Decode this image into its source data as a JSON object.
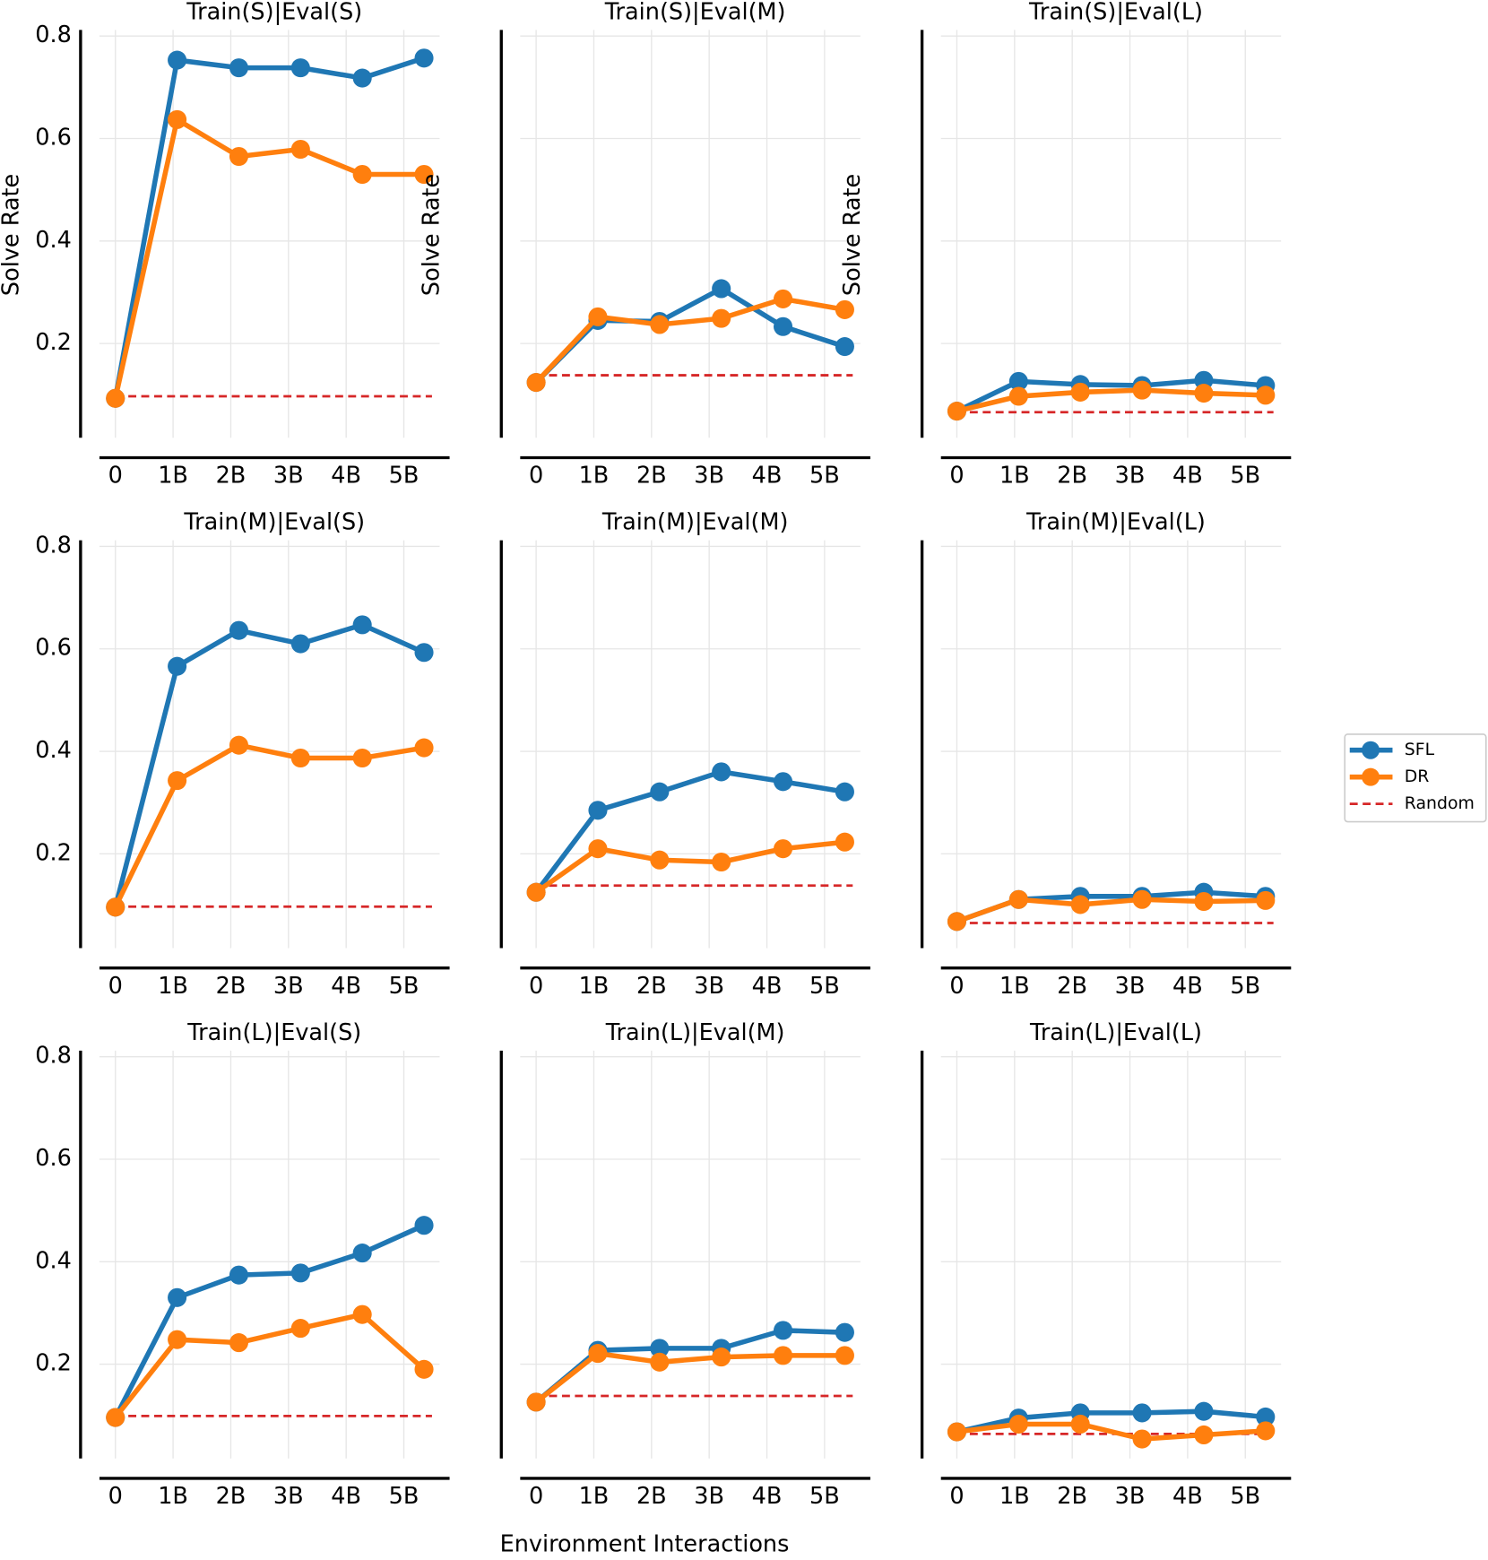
{
  "figure": {
    "xlabel": "Environment Interactions",
    "legend_position": "right"
  },
  "chart_data": [
    {
      "type": "line",
      "title": "Train(S)|Eval(S)",
      "ylabel": "Solve Rate",
      "yticklabels": true,
      "x": [
        0,
        1.07,
        2.14,
        3.21,
        4.28,
        5.35
      ],
      "xlim": [
        -0.276,
        5.793
      ],
      "xticks": [
        0,
        {
          "value": 1,
          "label": "1B"
        },
        {
          "value": 2,
          "label": "2B"
        },
        {
          "value": 3,
          "label": "3B"
        },
        {
          "value": 4,
          "label": "4B"
        },
        {
          "value": 5,
          "label": "5B"
        }
      ],
      "ylim": [
        0.016,
        0.812
      ],
      "yticks": [
        0.2,
        0.4,
        0.6,
        0.8
      ],
      "grid": true,
      "series": [
        {
          "name": "SFL",
          "color": "#1f77b4",
          "values": [
            0.093,
            0.753,
            0.738,
            0.738,
            0.718,
            0.757
          ]
        },
        {
          "name": "DR",
          "color": "#ff7f0e",
          "values": [
            0.093,
            0.637,
            0.565,
            0.579,
            0.53,
            0.53
          ]
        }
      ],
      "random": {
        "name": "Random",
        "color": "#d62728",
        "value": 0.097
      }
    },
    {
      "type": "line",
      "title": "Train(S)|Eval(M)",
      "ylabel": "Solve Rate",
      "yticklabels": false,
      "x": [
        0,
        1.07,
        2.14,
        3.21,
        4.28,
        5.35
      ],
      "xlim": [
        -0.276,
        5.793
      ],
      "xticks": [
        0,
        {
          "value": 1,
          "label": "1B"
        },
        {
          "value": 2,
          "label": "2B"
        },
        {
          "value": 3,
          "label": "3B"
        },
        {
          "value": 4,
          "label": "4B"
        },
        {
          "value": 5,
          "label": "5B"
        }
      ],
      "ylim": [
        0.016,
        0.812
      ],
      "yticks": [
        0.2,
        0.4,
        0.6,
        0.8
      ],
      "grid": true,
      "series": [
        {
          "name": "SFL",
          "color": "#1f77b4",
          "values": [
            0.124,
            0.245,
            0.243,
            0.307,
            0.233,
            0.194
          ]
        },
        {
          "name": "DR",
          "color": "#ff7f0e",
          "values": [
            0.124,
            0.252,
            0.237,
            0.249,
            0.287,
            0.266
          ]
        }
      ],
      "random": {
        "name": "Random",
        "color": "#d62728",
        "value": 0.138
      }
    },
    {
      "type": "line",
      "title": "Train(S)|Eval(L)",
      "ylabel": "Solve Rate",
      "yticklabels": false,
      "x": [
        0,
        1.07,
        2.14,
        3.21,
        4.28,
        5.35
      ],
      "xlim": [
        -0.276,
        5.793
      ],
      "xticks": [
        0,
        {
          "value": 1,
          "label": "1B"
        },
        {
          "value": 2,
          "label": "2B"
        },
        {
          "value": 3,
          "label": "3B"
        },
        {
          "value": 4,
          "label": "4B"
        },
        {
          "value": 5,
          "label": "5B"
        }
      ],
      "ylim": [
        0.016,
        0.812
      ],
      "yticks": [
        0.2,
        0.4,
        0.6,
        0.8
      ],
      "grid": true,
      "series": [
        {
          "name": "SFL",
          "color": "#1f77b4",
          "values": [
            0.068,
            0.126,
            0.12,
            0.118,
            0.128,
            0.118
          ]
        },
        {
          "name": "DR",
          "color": "#ff7f0e",
          "values": [
            0.068,
            0.097,
            0.105,
            0.109,
            0.103,
            0.099
          ]
        }
      ],
      "random": {
        "name": "Random",
        "color": "#d62728",
        "value": 0.066
      }
    },
    {
      "type": "line",
      "title": "Train(M)|Eval(S)",
      "yticklabels": true,
      "x": [
        0,
        1.07,
        2.14,
        3.21,
        4.28,
        5.35
      ],
      "xlim": [
        -0.276,
        5.793
      ],
      "xticks": [
        0,
        {
          "value": 1,
          "label": "1B"
        },
        {
          "value": 2,
          "label": "2B"
        },
        {
          "value": 3,
          "label": "3B"
        },
        {
          "value": 4,
          "label": "4B"
        },
        {
          "value": 5,
          "label": "5B"
        }
      ],
      "ylim": [
        0.016,
        0.812
      ],
      "yticks": [
        0.2,
        0.4,
        0.6,
        0.8
      ],
      "grid": true,
      "series": [
        {
          "name": "SFL",
          "color": "#1f77b4",
          "values": [
            0.096,
            0.566,
            0.636,
            0.61,
            0.647,
            0.593
          ]
        },
        {
          "name": "DR",
          "color": "#ff7f0e",
          "values": [
            0.096,
            0.343,
            0.412,
            0.387,
            0.387,
            0.407
          ]
        }
      ],
      "random": {
        "name": "Random",
        "color": "#d62728",
        "value": 0.097
      }
    },
    {
      "type": "line",
      "title": "Train(M)|Eval(M)",
      "yticklabels": false,
      "x": [
        0,
        1.07,
        2.14,
        3.21,
        4.28,
        5.35
      ],
      "xlim": [
        -0.276,
        5.793
      ],
      "xticks": [
        0,
        {
          "value": 1,
          "label": "1B"
        },
        {
          "value": 2,
          "label": "2B"
        },
        {
          "value": 3,
          "label": "3B"
        },
        {
          "value": 4,
          "label": "4B"
        },
        {
          "value": 5,
          "label": "5B"
        }
      ],
      "ylim": [
        0.016,
        0.812
      ],
      "yticks": [
        0.2,
        0.4,
        0.6,
        0.8
      ],
      "grid": true,
      "series": [
        {
          "name": "SFL",
          "color": "#1f77b4",
          "values": [
            0.125,
            0.285,
            0.321,
            0.36,
            0.341,
            0.321
          ]
        },
        {
          "name": "DR",
          "color": "#ff7f0e",
          "values": [
            0.125,
            0.21,
            0.188,
            0.184,
            0.21,
            0.223
          ]
        }
      ],
      "random": {
        "name": "Random",
        "color": "#d62728",
        "value": 0.138
      }
    },
    {
      "type": "line",
      "title": "Train(M)|Eval(L)",
      "yticklabels": false,
      "x": [
        0,
        1.07,
        2.14,
        3.21,
        4.28,
        5.35
      ],
      "xlim": [
        -0.276,
        5.793
      ],
      "xticks": [
        0,
        {
          "value": 1,
          "label": "1B"
        },
        {
          "value": 2,
          "label": "2B"
        },
        {
          "value": 3,
          "label": "3B"
        },
        {
          "value": 4,
          "label": "4B"
        },
        {
          "value": 5,
          "label": "5B"
        }
      ],
      "ylim": [
        0.016,
        0.812
      ],
      "yticks": [
        0.2,
        0.4,
        0.6,
        0.8
      ],
      "grid": true,
      "series": [
        {
          "name": "SFL",
          "color": "#1f77b4",
          "values": [
            0.068,
            0.111,
            0.117,
            0.117,
            0.125,
            0.117
          ]
        },
        {
          "name": "DR",
          "color": "#ff7f0e",
          "values": [
            0.068,
            0.111,
            0.101,
            0.111,
            0.107,
            0.109
          ]
        }
      ],
      "random": {
        "name": "Random",
        "color": "#d62728",
        "value": 0.065
      }
    },
    {
      "type": "line",
      "title": "Train(L)|Eval(S)",
      "yticklabels": true,
      "x": [
        0,
        1.07,
        2.14,
        3.21,
        4.28,
        5.35
      ],
      "xlim": [
        -0.276,
        5.793
      ],
      "xticks": [
        0,
        {
          "value": 1,
          "label": "1B"
        },
        {
          "value": 2,
          "label": "2B"
        },
        {
          "value": 3,
          "label": "3B"
        },
        {
          "value": 4,
          "label": "4B"
        },
        {
          "value": 5,
          "label": "5B"
        }
      ],
      "ylim": [
        0.016,
        0.812
      ],
      "yticks": [
        0.2,
        0.4,
        0.6,
        0.8
      ],
      "grid": true,
      "series": [
        {
          "name": "SFL",
          "color": "#1f77b4",
          "values": [
            0.096,
            0.33,
            0.374,
            0.378,
            0.417,
            0.471
          ]
        },
        {
          "name": "DR",
          "color": "#ff7f0e",
          "values": [
            0.096,
            0.248,
            0.242,
            0.27,
            0.297,
            0.19
          ]
        }
      ],
      "random": {
        "name": "Random",
        "color": "#d62728",
        "value": 0.099
      }
    },
    {
      "type": "line",
      "title": "Train(L)|Eval(M)",
      "yticklabels": false,
      "x": [
        0,
        1.07,
        2.14,
        3.21,
        4.28,
        5.35
      ],
      "xlim": [
        -0.276,
        5.793
      ],
      "xticks": [
        0,
        {
          "value": 1,
          "label": "1B"
        },
        {
          "value": 2,
          "label": "2B"
        },
        {
          "value": 3,
          "label": "3B"
        },
        {
          "value": 4,
          "label": "4B"
        },
        {
          "value": 5,
          "label": "5B"
        }
      ],
      "ylim": [
        0.016,
        0.812
      ],
      "yticks": [
        0.2,
        0.4,
        0.6,
        0.8
      ],
      "grid": true,
      "series": [
        {
          "name": "SFL",
          "color": "#1f77b4",
          "values": [
            0.126,
            0.227,
            0.231,
            0.231,
            0.266,
            0.262
          ]
        },
        {
          "name": "DR",
          "color": "#ff7f0e",
          "values": [
            0.126,
            0.221,
            0.204,
            0.214,
            0.217,
            0.217
          ]
        }
      ],
      "random": {
        "name": "Random",
        "color": "#d62728",
        "value": 0.138
      }
    },
    {
      "type": "line",
      "title": "Train(L)|Eval(L)",
      "yticklabels": false,
      "x": [
        0,
        1.07,
        2.14,
        3.21,
        4.28,
        5.35
      ],
      "xlim": [
        -0.276,
        5.793
      ],
      "xticks": [
        0,
        {
          "value": 1,
          "label": "1B"
        },
        {
          "value": 2,
          "label": "2B"
        },
        {
          "value": 3,
          "label": "3B"
        },
        {
          "value": 4,
          "label": "4B"
        },
        {
          "value": 5,
          "label": "5B"
        }
      ],
      "ylim": [
        0.016,
        0.812
      ],
      "yticks": [
        0.2,
        0.4,
        0.6,
        0.8
      ],
      "grid": true,
      "series": [
        {
          "name": "SFL",
          "color": "#1f77b4",
          "values": [
            0.068,
            0.095,
            0.105,
            0.105,
            0.108,
            0.097
          ]
        },
        {
          "name": "DR",
          "color": "#ff7f0e",
          "values": [
            0.068,
            0.083,
            0.083,
            0.054,
            0.062,
            0.07
          ]
        }
      ],
      "random": {
        "name": "Random",
        "color": "#d62728",
        "value": 0.064
      }
    }
  ]
}
